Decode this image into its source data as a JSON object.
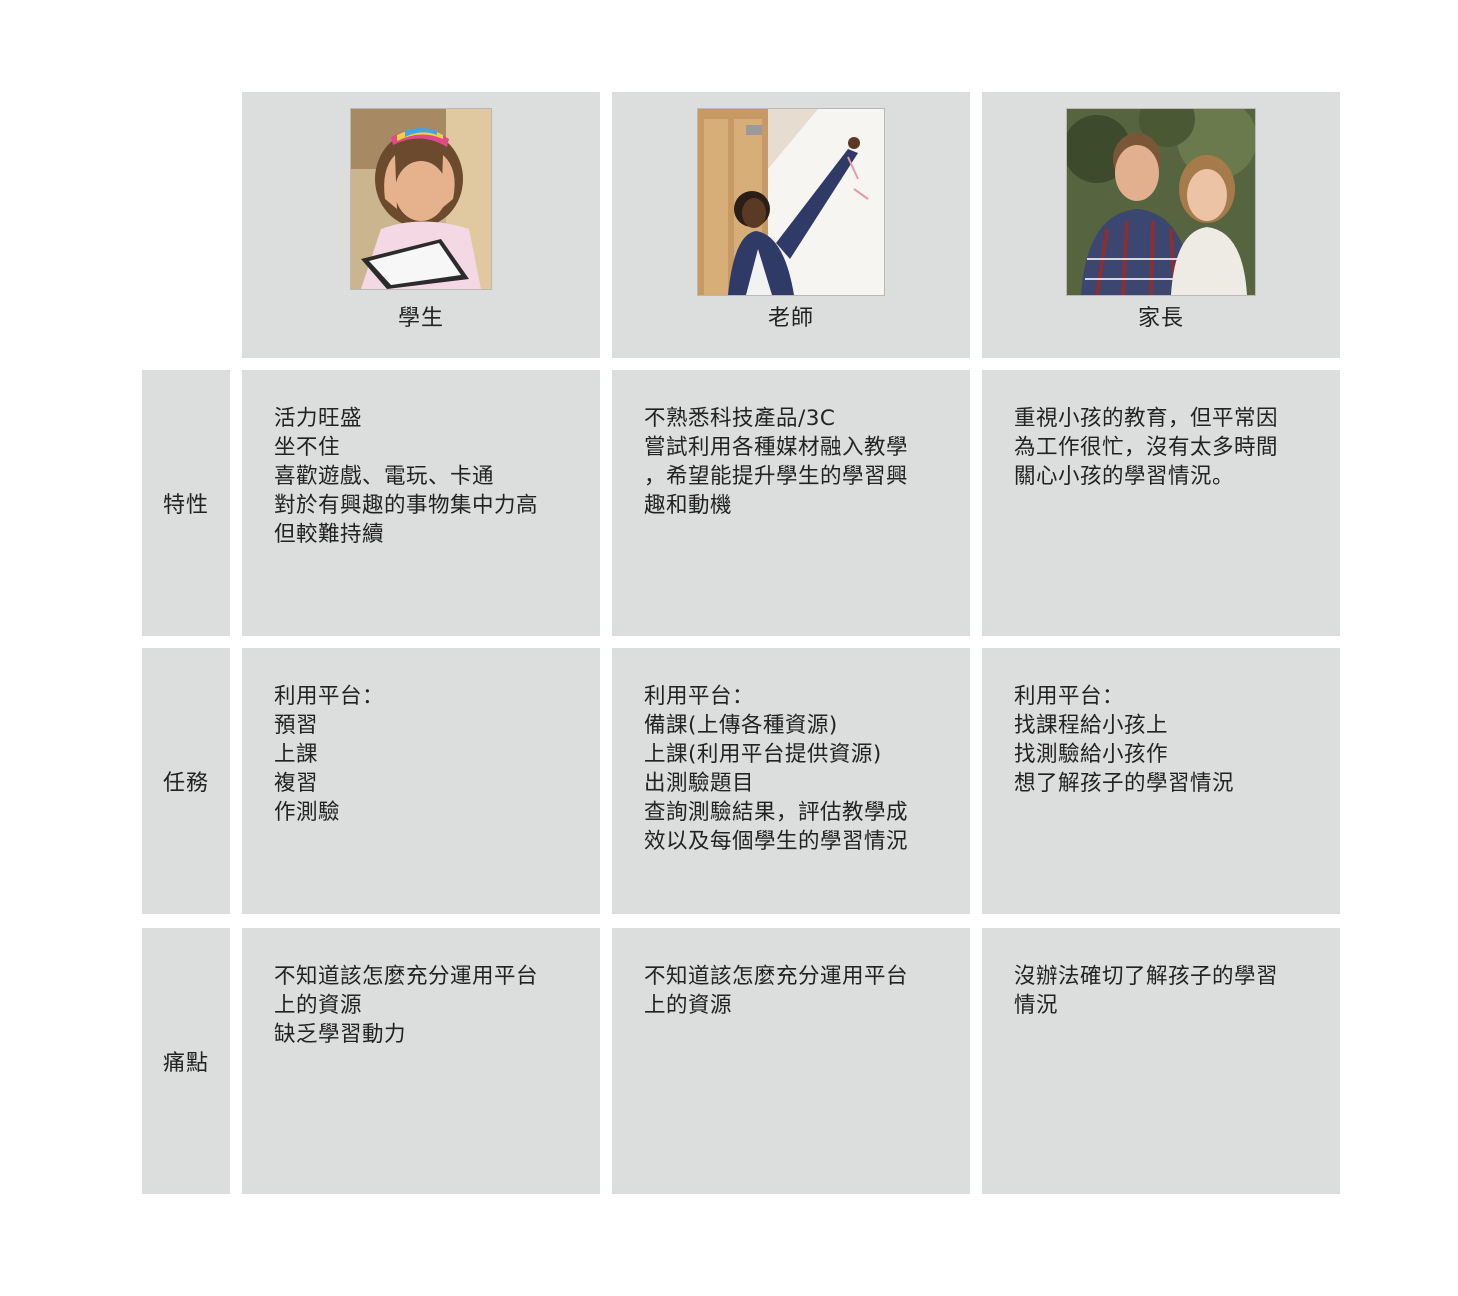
{
  "headers": {
    "student": "學生",
    "teacher": "老師",
    "parent": "家長"
  },
  "row_labels": {
    "traits": "特性",
    "tasks": "任務",
    "pain_points": "痛點"
  },
  "traits": {
    "student": [
      "活力旺盛",
      "坐不住",
      "喜歡遊戲、電玩、卡通",
      "對於有興趣的事物集中力高",
      "但較難持續"
    ],
    "teacher": [
      "不熟悉科技產品/3C",
      "嘗試利用各種媒材融入教學",
      "，希望能提升學生的學習興",
      "趣和動機"
    ],
    "parent": [
      "重視小孩的教育，但平常因",
      "為工作很忙，沒有太多時間",
      "關心小孩的學習情況。"
    ]
  },
  "tasks": {
    "student": [
      "利用平台：",
      "預習",
      "上課",
      "複習",
      "作測驗"
    ],
    "teacher": [
      "利用平台：",
      "備課(上傳各種資源)",
      "上課(利用平台提供資源)",
      "出測驗題目",
      "查詢測驗結果，評估教學成",
      "效以及每個學生的學習情況"
    ],
    "parent": [
      "利用平台：",
      "找課程給小孩上",
      "找測驗給小孩作",
      "想了解孩子的學習情況"
    ]
  },
  "pain_points": {
    "student": [
      "不知道該怎麼充分運用平台",
      "上的資源",
      "缺乏學習動力"
    ],
    "teacher": [
      "不知道該怎麼充分運用平台",
      "上的資源"
    ],
    "parent": [
      "沒辦法確切了解孩子的學習",
      "情況"
    ]
  },
  "colors": {
    "cell_bg": "#dcdddd",
    "text": "#222222",
    "page_bg": "#ffffff"
  }
}
